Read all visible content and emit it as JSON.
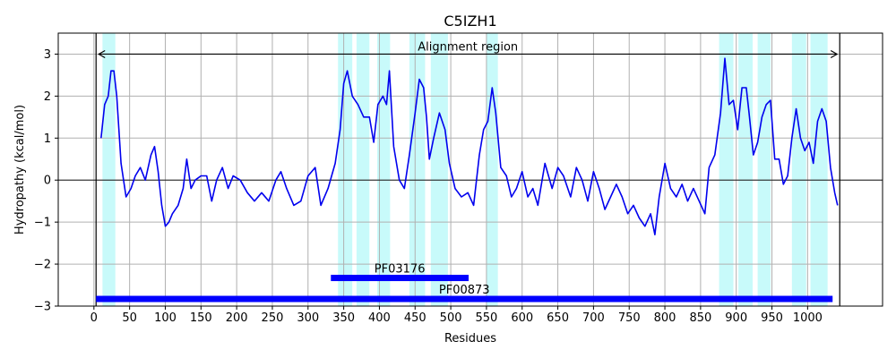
{
  "chart_data": {
    "type": "line",
    "title": "C5IZH1",
    "xlabel": "Residues",
    "ylabel": "Hydropathy (kcal/mol)",
    "xlim": [
      -50,
      1105
    ],
    "ylim": [
      -3,
      3.5
    ],
    "xticks": [
      0,
      50,
      100,
      150,
      200,
      250,
      300,
      350,
      400,
      450,
      500,
      550,
      600,
      650,
      700,
      750,
      800,
      850,
      900,
      950,
      1000
    ],
    "yticks": [
      -3,
      -2,
      -1,
      0,
      1,
      2,
      3
    ],
    "ytick_labels": [
      "−3",
      "−2",
      "−1",
      "0",
      "1",
      "2",
      "3"
    ],
    "grid": true,
    "colors": {
      "line": "#0000ee",
      "highlight": "#c8fafa",
      "domain_bar": "#0000ff",
      "grid": "#b0b0b0",
      "zero_line": "#000000"
    },
    "alignment_region": {
      "label": "Alignment region",
      "start": 3,
      "end": 1045,
      "y": 3.0
    },
    "sequence_bounds": [
      3,
      1045
    ],
    "highlight_regions": [
      [
        12,
        30
      ],
      [
        342,
        362
      ],
      [
        368,
        386
      ],
      [
        397,
        415
      ],
      [
        442,
        464
      ],
      [
        472,
        496
      ],
      [
        550,
        566
      ],
      [
        876,
        896
      ],
      [
        903,
        923
      ],
      [
        930,
        948
      ],
      [
        978,
        998
      ],
      [
        1004,
        1028
      ]
    ],
    "domains": [
      {
        "name": "PF03176",
        "start": 332,
        "end": 525,
        "y": -2.33
      },
      {
        "name": "PF00873",
        "start": 3,
        "end": 1035,
        "y": -2.83
      }
    ],
    "series": [
      {
        "values": [
          [
            10,
            1.0
          ],
          [
            15,
            1.8
          ],
          [
            20,
            2.0
          ],
          [
            24,
            2.6
          ],
          [
            28,
            2.6
          ],
          [
            32,
            2.0
          ],
          [
            38,
            0.4
          ],
          [
            45,
            -0.4
          ],
          [
            52,
            -0.2
          ],
          [
            58,
            0.1
          ],
          [
            65,
            0.3
          ],
          [
            72,
            0.0
          ],
          [
            80,
            0.6
          ],
          [
            85,
            0.8
          ],
          [
            90,
            0.2
          ],
          [
            95,
            -0.6
          ],
          [
            100,
            -1.1
          ],
          [
            105,
            -1.0
          ],
          [
            110,
            -0.8
          ],
          [
            118,
            -0.6
          ],
          [
            125,
            -0.2
          ],
          [
            130,
            0.5
          ],
          [
            136,
            -0.2
          ],
          [
            142,
            0.0
          ],
          [
            150,
            0.1
          ],
          [
            158,
            0.1
          ],
          [
            165,
            -0.5
          ],
          [
            172,
            0.0
          ],
          [
            180,
            0.3
          ],
          [
            188,
            -0.2
          ],
          [
            195,
            0.1
          ],
          [
            205,
            0.0
          ],
          [
            215,
            -0.3
          ],
          [
            225,
            -0.5
          ],
          [
            235,
            -0.3
          ],
          [
            245,
            -0.5
          ],
          [
            255,
            0.0
          ],
          [
            262,
            0.2
          ],
          [
            270,
            -0.2
          ],
          [
            280,
            -0.6
          ],
          [
            290,
            -0.5
          ],
          [
            300,
            0.1
          ],
          [
            310,
            0.3
          ],
          [
            318,
            -0.6
          ],
          [
            328,
            -0.2
          ],
          [
            338,
            0.4
          ],
          [
            345,
            1.2
          ],
          [
            350,
            2.3
          ],
          [
            355,
            2.6
          ],
          [
            362,
            2.0
          ],
          [
            370,
            1.8
          ],
          [
            378,
            1.5
          ],
          [
            386,
            1.5
          ],
          [
            392,
            0.9
          ],
          [
            398,
            1.8
          ],
          [
            405,
            2.0
          ],
          [
            410,
            1.8
          ],
          [
            414,
            2.6
          ],
          [
            420,
            0.8
          ],
          [
            428,
            0.0
          ],
          [
            435,
            -0.2
          ],
          [
            442,
            0.6
          ],
          [
            450,
            1.6
          ],
          [
            456,
            2.4
          ],
          [
            462,
            2.2
          ],
          [
            466,
            1.5
          ],
          [
            470,
            0.5
          ],
          [
            476,
            1.0
          ],
          [
            484,
            1.6
          ],
          [
            492,
            1.2
          ],
          [
            498,
            0.4
          ],
          [
            506,
            -0.2
          ],
          [
            515,
            -0.4
          ],
          [
            524,
            -0.3
          ],
          [
            532,
            -0.6
          ],
          [
            540,
            0.6
          ],
          [
            546,
            1.2
          ],
          [
            552,
            1.4
          ],
          [
            558,
            2.2
          ],
          [
            563,
            1.6
          ],
          [
            570,
            0.3
          ],
          [
            578,
            0.1
          ],
          [
            585,
            -0.4
          ],
          [
            592,
            -0.2
          ],
          [
            600,
            0.2
          ],
          [
            608,
            -0.4
          ],
          [
            615,
            -0.2
          ],
          [
            622,
            -0.6
          ],
          [
            632,
            0.4
          ],
          [
            642,
            -0.2
          ],
          [
            650,
            0.3
          ],
          [
            658,
            0.1
          ],
          [
            668,
            -0.4
          ],
          [
            676,
            0.3
          ],
          [
            684,
            0.0
          ],
          [
            692,
            -0.5
          ],
          [
            700,
            0.2
          ],
          [
            708,
            -0.2
          ],
          [
            716,
            -0.7
          ],
          [
            724,
            -0.4
          ],
          [
            732,
            -0.1
          ],
          [
            740,
            -0.4
          ],
          [
            748,
            -0.8
          ],
          [
            756,
            -0.6
          ],
          [
            764,
            -0.9
          ],
          [
            772,
            -1.1
          ],
          [
            780,
            -0.8
          ],
          [
            786,
            -1.3
          ],
          [
            792,
            -0.4
          ],
          [
            800,
            0.4
          ],
          [
            808,
            -0.2
          ],
          [
            816,
            -0.4
          ],
          [
            824,
            -0.1
          ],
          [
            832,
            -0.5
          ],
          [
            840,
            -0.2
          ],
          [
            848,
            -0.5
          ],
          [
            856,
            -0.8
          ],
          [
            862,
            0.3
          ],
          [
            870,
            0.6
          ],
          [
            878,
            1.6
          ],
          [
            884,
            2.9
          ],
          [
            890,
            1.8
          ],
          [
            896,
            1.9
          ],
          [
            902,
            1.2
          ],
          [
            908,
            2.2
          ],
          [
            914,
            2.2
          ],
          [
            918,
            1.6
          ],
          [
            924,
            0.6
          ],
          [
            930,
            0.9
          ],
          [
            936,
            1.5
          ],
          [
            942,
            1.8
          ],
          [
            948,
            1.9
          ],
          [
            954,
            0.5
          ],
          [
            960,
            0.5
          ],
          [
            966,
            -0.1
          ],
          [
            972,
            0.1
          ],
          [
            978,
            1.0
          ],
          [
            984,
            1.7
          ],
          [
            990,
            1.0
          ],
          [
            996,
            0.7
          ],
          [
            1002,
            0.9
          ],
          [
            1008,
            0.4
          ],
          [
            1014,
            1.4
          ],
          [
            1020,
            1.7
          ],
          [
            1026,
            1.4
          ],
          [
            1032,
            0.3
          ],
          [
            1038,
            -0.3
          ],
          [
            1042,
            -0.6
          ]
        ]
      }
    ]
  }
}
